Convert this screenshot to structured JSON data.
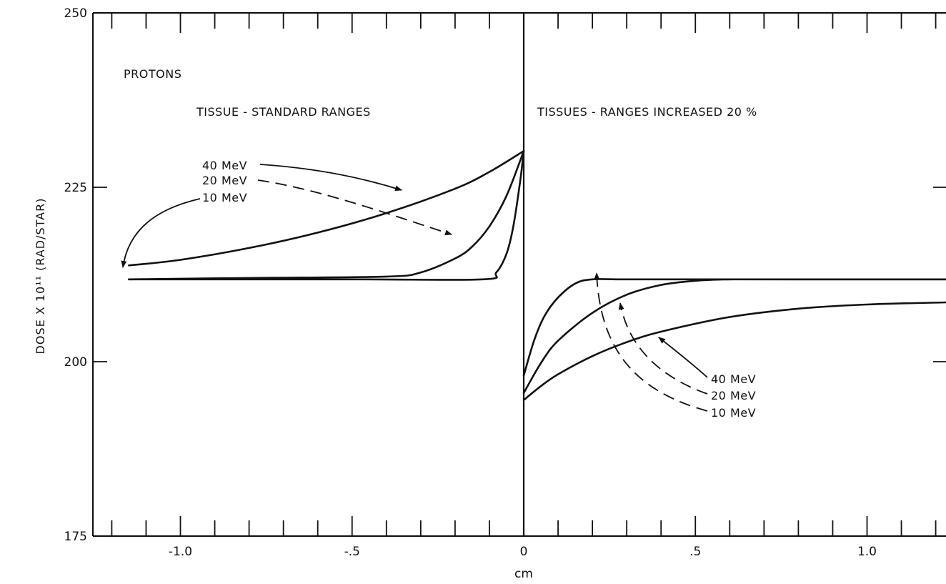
{
  "chart_data": {
    "type": "line",
    "xlabel": "cm",
    "ylabel": "DOSE X 10¹¹ (RAD/STAR)",
    "xlim": [
      -1.23,
      1.23
    ],
    "ylim": [
      175,
      250
    ],
    "x_ticks": [
      {
        "value": -1.0,
        "label": "-1.0"
      },
      {
        "value": -0.5,
        "label": "-.5"
      },
      {
        "value": 0,
        "label": "0"
      },
      {
        "value": 0.5,
        "label": ".5"
      },
      {
        "value": 1.0,
        "label": "1.0"
      }
    ],
    "y_ticks": [
      {
        "value": 175,
        "label": "175"
      },
      {
        "value": 200,
        "label": "200"
      },
      {
        "value": 225,
        "label": "225"
      },
      {
        "value": 250,
        "label": "250"
      }
    ],
    "grid": false,
    "annotations": {
      "particle": "PROTONS",
      "left_panel": "TISSUE - STANDARD RANGES",
      "right_panel": "TISSUES - RANGES INCREASED 20 %",
      "left_labels": [
        "40 MeV",
        "20 MeV",
        "10 MeV"
      ],
      "right_labels": [
        "40 MeV",
        "20 MeV",
        "10 MeV"
      ]
    },
    "series": [
      {
        "name": "40 MeV",
        "panel": "left",
        "x": [
          -1.15,
          -1.0,
          -0.8,
          -0.6,
          -0.4,
          -0.2,
          -0.1,
          0
        ],
        "y": [
          213.8,
          214.6,
          216.3,
          218.5,
          221.3,
          224.8,
          227.2,
          230.2
        ]
      },
      {
        "name": "20 MeV",
        "panel": "left",
        "x": [
          -1.15,
          -0.8,
          -0.4,
          -0.3,
          -0.2,
          -0.15,
          -0.1,
          -0.05,
          0
        ],
        "y": [
          211.8,
          212.0,
          212.2,
          212.8,
          214.8,
          216.5,
          219.4,
          223.8,
          230.2
        ]
      },
      {
        "name": "10 MeV",
        "panel": "left",
        "x": [
          -1.15,
          -0.5,
          -0.12,
          -0.08,
          -0.05,
          -0.03,
          -0.01,
          0
        ],
        "y": [
          211.8,
          211.8,
          211.8,
          212.8,
          215.5,
          219.5,
          226.0,
          230.2
        ]
      },
      {
        "name": "40 MeV",
        "panel": "right",
        "x": [
          0,
          0.05,
          0.1,
          0.2,
          0.3,
          0.4,
          0.6,
          0.8,
          1.0,
          1.23
        ],
        "y": [
          194.5,
          196.5,
          198.2,
          200.8,
          202.8,
          204.3,
          206.4,
          207.6,
          208.2,
          208.5
        ]
      },
      {
        "name": "20 MeV",
        "panel": "right",
        "x": [
          0,
          0.05,
          0.1,
          0.2,
          0.3,
          0.4,
          0.5,
          0.6,
          0.8,
          1.23
        ],
        "y": [
          195.5,
          199.8,
          203.0,
          207.0,
          209.6,
          211.0,
          211.6,
          211.8,
          211.8,
          211.8
        ]
      },
      {
        "name": "10 MeV",
        "panel": "right",
        "x": [
          0,
          0.03,
          0.06,
          0.1,
          0.15,
          0.2,
          0.3,
          0.6,
          1.23
        ],
        "y": [
          198.0,
          203.0,
          206.5,
          209.2,
          211.2,
          211.8,
          211.8,
          211.8,
          211.8
        ]
      }
    ]
  }
}
